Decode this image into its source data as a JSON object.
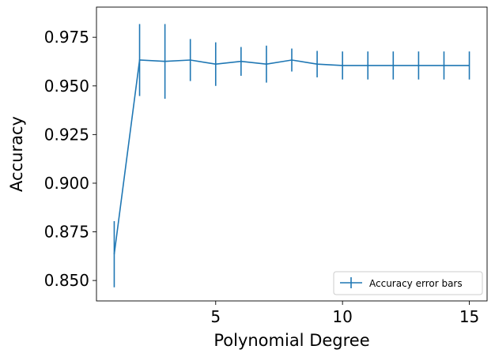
{
  "chart_data": {
    "type": "line",
    "title": "",
    "xlabel": "Polynomial Degree",
    "ylabel": "Accuracy",
    "xlim": [
      0.3,
      15.7
    ],
    "ylim": [
      0.8395,
      0.9905
    ],
    "x_ticks": [
      5,
      10,
      15
    ],
    "x_tick_labels": [
      "5",
      "10",
      "15"
    ],
    "y_ticks": [
      0.85,
      0.875,
      0.9,
      0.925,
      0.95,
      0.975
    ],
    "y_tick_labels": [
      "0.850",
      "0.875",
      "0.900",
      "0.925",
      "0.950",
      "0.975"
    ],
    "grid": false,
    "legend_position": "lower-right",
    "series": [
      {
        "name": "Accuracy error bars",
        "color": "#1f77b4",
        "error_bars": true,
        "x": [
          1,
          2,
          3,
          4,
          5,
          6,
          7,
          8,
          9,
          10,
          11,
          12,
          13,
          14,
          15
        ],
        "y": [
          0.8635,
          0.9633,
          0.9626,
          0.9633,
          0.9612,
          0.9626,
          0.9612,
          0.9633,
          0.9612,
          0.9605,
          0.9605,
          0.9605,
          0.9605,
          0.9605,
          0.9605
        ],
        "err": [
          0.017,
          0.0185,
          0.0192,
          0.0108,
          0.0112,
          0.0074,
          0.0095,
          0.0059,
          0.0068,
          0.0072,
          0.0072,
          0.0072,
          0.0072,
          0.0072,
          0.0072
        ]
      }
    ]
  }
}
